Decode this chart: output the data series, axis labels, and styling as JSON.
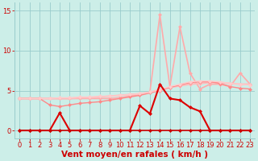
{
  "bg_color": "#cceee8",
  "grid_color": "#99cccc",
  "xlabel": "Vent moyen/en rafales ( km/h )",
  "xlabel_color": "#cc0000",
  "xlim": [
    -0.5,
    23.5
  ],
  "ylim": [
    -1,
    16
  ],
  "yticks": [
    0,
    5,
    10,
    15
  ],
  "xticks": [
    0,
    1,
    2,
    3,
    4,
    5,
    6,
    7,
    8,
    9,
    10,
    11,
    12,
    13,
    14,
    15,
    16,
    17,
    18,
    19,
    20,
    21,
    22,
    23
  ],
  "x": [
    0,
    1,
    2,
    3,
    4,
    5,
    6,
    7,
    8,
    9,
    10,
    11,
    12,
    13,
    14,
    15,
    16,
    17,
    18,
    19,
    20,
    21,
    22,
    23
  ],
  "line_peak_y": [
    4.0,
    4.0,
    4.0,
    4.0,
    4.0,
    4.0,
    4.0,
    4.0,
    4.0,
    4.0,
    4.1,
    4.3,
    4.5,
    4.8,
    14.5,
    5.5,
    13.0,
    7.2,
    5.2,
    5.8,
    5.8,
    5.5,
    7.2,
    5.8
  ],
  "line_peak_color": "#ffaaaa",
  "line_peak_lw": 1.2,
  "line_a_y": [
    4.0,
    4.0,
    4.0,
    4.0,
    4.0,
    4.0,
    4.1,
    4.1,
    4.2,
    4.3,
    4.4,
    4.5,
    4.6,
    4.8,
    5.1,
    5.4,
    5.6,
    5.8,
    5.9,
    6.0,
    6.0,
    5.9,
    5.8,
    5.8
  ],
  "line_a_color": "#ffbbbb",
  "line_a_lw": 1.5,
  "line_b_y": [
    4.0,
    4.0,
    4.0,
    3.2,
    3.0,
    3.2,
    3.4,
    3.5,
    3.6,
    3.8,
    4.0,
    4.2,
    4.4,
    4.7,
    5.0,
    5.4,
    5.7,
    6.0,
    6.1,
    6.1,
    5.9,
    5.5,
    5.3,
    5.2
  ],
  "line_b_color": "#ff8888",
  "line_b_lw": 1.0,
  "line_c_y": [
    4.0,
    4.0,
    4.0,
    4.0,
    4.1,
    4.1,
    4.2,
    4.2,
    4.3,
    4.3,
    4.4,
    4.5,
    4.6,
    4.8,
    5.1,
    5.5,
    5.8,
    6.1,
    6.2,
    6.2,
    6.1,
    5.9,
    5.8,
    5.7
  ],
  "line_c_color": "#ffcccc",
  "line_c_lw": 1.0,
  "line_red_y": [
    0.0,
    0.0,
    0.0,
    0.0,
    2.2,
    0.0,
    0.0,
    0.0,
    0.0,
    0.0,
    0.0,
    0.0,
    3.1,
    2.1,
    5.8,
    4.0,
    3.8,
    2.9,
    2.4,
    0.0,
    0.0,
    0.0,
    0.0,
    0.0
  ],
  "line_red_color": "#dd0000",
  "line_red_lw": 1.5,
  "line_zero_y": [
    0.0,
    0.0,
    0.0,
    0.0,
    0.0,
    0.0,
    0.0,
    0.0,
    0.0,
    0.0,
    0.0,
    0.0,
    0.0,
    0.0,
    0.0,
    0.0,
    0.0,
    0.0,
    0.0,
    0.0,
    0.0,
    0.0,
    0.0,
    0.0
  ],
  "line_zero_color": "#cc0000",
  "line_zero_lw": 1.2,
  "marker_size": 2.5,
  "tick_fontsize": 6.0,
  "xlabel_fontsize": 7.5
}
